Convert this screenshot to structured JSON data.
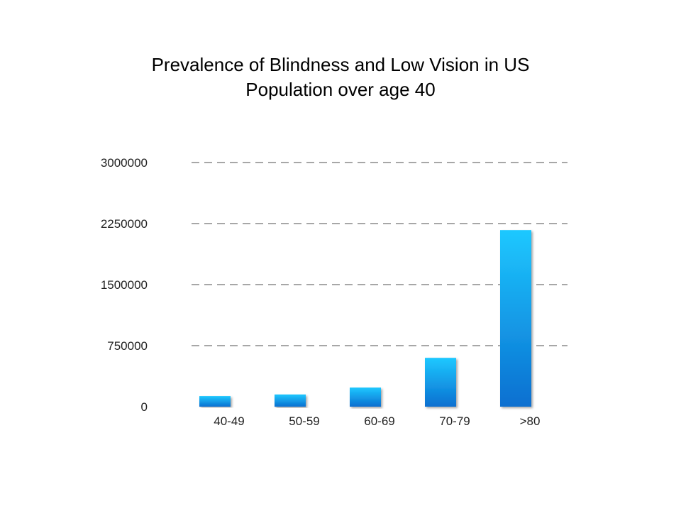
{
  "chart_data": {
    "type": "bar",
    "title_lines": [
      "Prevalence of Blindness and Low Vision in US",
      "Population over age 40"
    ],
    "xlabel": "",
    "ylabel": "",
    "categories": [
      "40-49",
      "50-59",
      "60-69",
      "70-79",
      ">80"
    ],
    "values": [
      130000,
      150000,
      235000,
      600000,
      2170000
    ],
    "ylim": [
      0,
      3000000
    ],
    "yticks": [
      0,
      750000,
      1500000,
      2250000,
      3000000
    ],
    "ytick_labels": [
      "0",
      "750000",
      "1500000",
      "2250000",
      "3000000"
    ],
    "grid": "dashed horizontal",
    "legend": "none",
    "colors": {
      "bar_top": "#1ec8ff",
      "bar_bottom": "#0a6fd0",
      "grid": "#8a8a8a"
    }
  }
}
